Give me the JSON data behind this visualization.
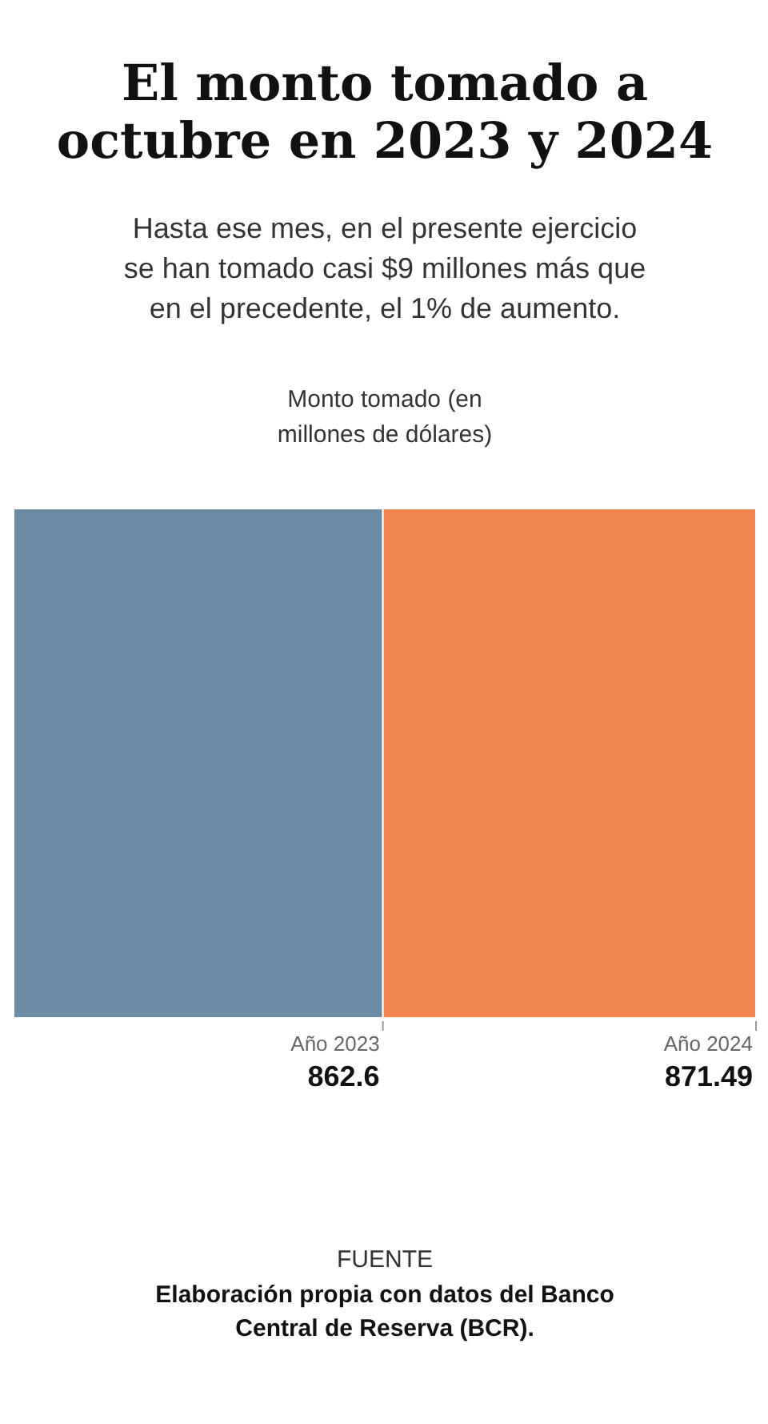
{
  "chart_data": {
    "type": "bar",
    "orientation": "horizontal",
    "stacked": true,
    "title": "El monto tomado a octubre en 2023 y 2024",
    "subtitle": "Hasta ese mes, en el presente ejercicio se han tomado casi $9 millones más que en el precedente, el 1% de aumento.",
    "xlabel": "Monto tomado (en millones de dólares)",
    "categories": [
      null
    ],
    "series": [
      {
        "name": "Año 2023",
        "color": "#6b8ba4",
        "values": [
          862.6
        ]
      },
      {
        "name": "Año 2024",
        "color": "#f0854d",
        "values": [
          871.49
        ]
      }
    ],
    "data_labels": true,
    "tick_labels": false,
    "grid": false,
    "annotations": [
      "FUENTE",
      "Elaboración propia con datos del Banco Central de Reserva (BCR)."
    ]
  }
}
